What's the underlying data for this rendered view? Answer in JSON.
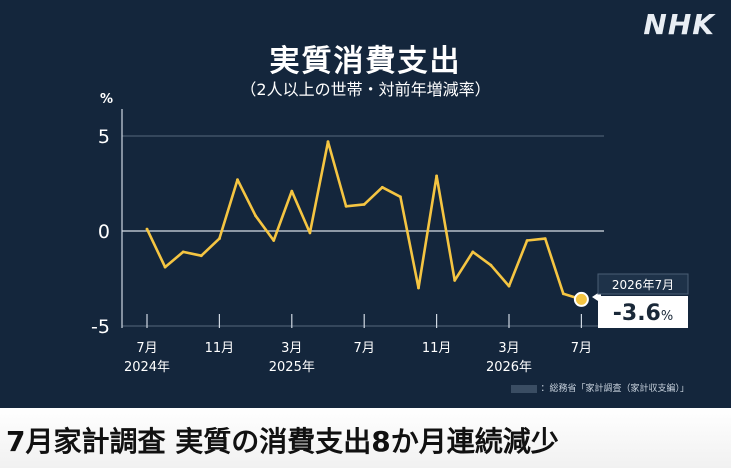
{
  "header": {
    "brand": "NHK",
    "title": "実質消費支出",
    "subtitle": "（2人以上の世帯・対前年増減率）"
  },
  "chart_data": {
    "type": "line",
    "title": "実質消費支出",
    "subtitle": "（2人以上の世帯・対前年増減率）",
    "ylabel": "%",
    "xlabel": "",
    "ylim": [
      -5,
      6
    ],
    "yticks": [
      5,
      0,
      -5
    ],
    "grid": true,
    "x_tick_labels": [
      {
        "index": 0,
        "label": "7月",
        "year": "2024年"
      },
      {
        "index": 4,
        "label": "11月",
        "year": ""
      },
      {
        "index": 8,
        "label": "3月",
        "year": "2025年"
      },
      {
        "index": 12,
        "label": "7月",
        "year": ""
      },
      {
        "index": 16,
        "label": "11月",
        "year": ""
      },
      {
        "index": 20,
        "label": "3月",
        "year": "2026年"
      },
      {
        "index": 24,
        "label": "7月",
        "year": ""
      }
    ],
    "series": [
      {
        "color": "#f5c542",
        "values": [
          0.1,
          -1.9,
          -1.1,
          -1.3,
          -0.4,
          2.7,
          0.8,
          -0.5,
          2.1,
          -0.1,
          4.7,
          1.3,
          1.4,
          2.3,
          1.8,
          -3.0,
          2.9,
          -2.6,
          -1.1,
          -1.8,
          -2.9,
          -0.5,
          -0.4,
          -3.3,
          -3.6
        ]
      }
    ],
    "callout": {
      "index": 24,
      "date_label": "2026年7月",
      "value_label": "-3.6",
      "unit": "%"
    },
    "source": "：総務省「家計調査（家計収支編）」"
  },
  "headline": "7月家計調査 実質の消費支出8か月連続減少"
}
